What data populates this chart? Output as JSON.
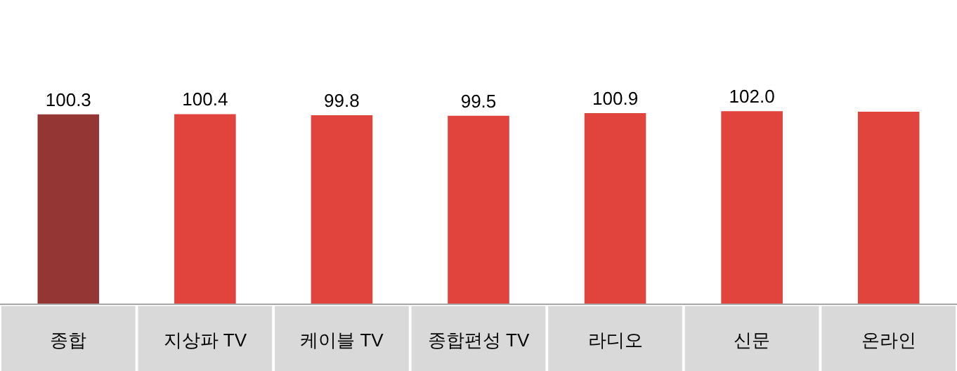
{
  "chart_data": {
    "type": "bar",
    "categories": [
      "종합",
      "지상파 TV",
      "케이블 TV",
      "종합편성 TV",
      "라디오",
      "신문",
      "온라인"
    ],
    "values": [
      100.3,
      100.4,
      99.8,
      99.5,
      100.9,
      102.0,
      101.7
    ],
    "colors": [
      "#943634",
      "#e0443c",
      "#e0443c",
      "#e0443c",
      "#e0443c",
      "#e0443c",
      "#e0443c"
    ],
    "value_labels": [
      "100.3",
      "100.4",
      "99.8",
      "99.5",
      "100.9",
      "102.0",
      null
    ]
  }
}
